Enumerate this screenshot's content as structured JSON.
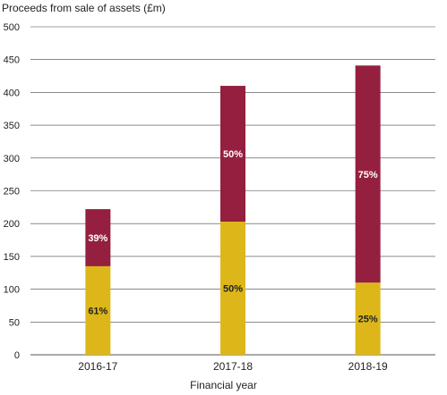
{
  "chart_data": {
    "type": "bar",
    "stacked": true,
    "title": "",
    "ylabel": "Proceeds from sale of assets (£m)",
    "xlabel": "Financial year",
    "categories": [
      "2016-17",
      "2017-18",
      "2018-19"
    ],
    "ylim": [
      0,
      500
    ],
    "yticks": [
      0,
      50,
      100,
      150,
      200,
      250,
      300,
      350,
      400,
      450,
      500
    ],
    "grid": true,
    "series": [
      {
        "color": "#DDB71A",
        "values": [
          135,
          203,
          110
        ],
        "labels": [
          "61%",
          "50%",
          "25%"
        ],
        "label_color": "#222222"
      },
      {
        "color": "#951F3E",
        "values": [
          87,
          207,
          331
        ],
        "labels": [
          "39%",
          "50%",
          "75%"
        ],
        "label_color": "#ffffff"
      }
    ]
  }
}
